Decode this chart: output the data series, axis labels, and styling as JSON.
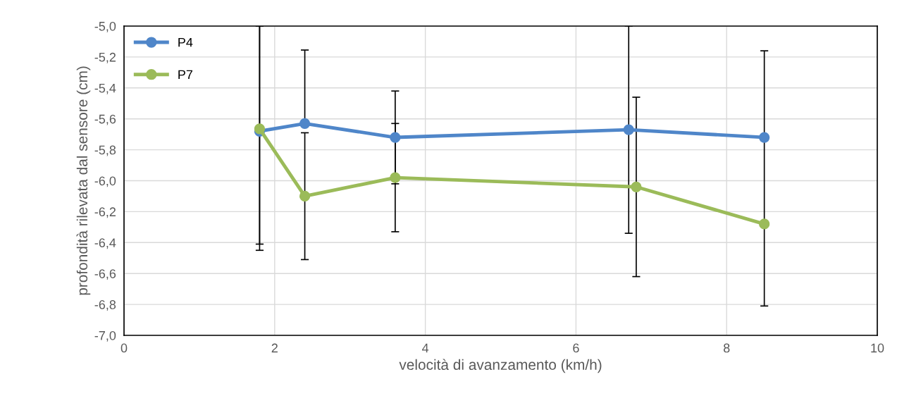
{
  "chart_data": {
    "type": "line",
    "xlabel": "velocità di avanzamento (km/h)",
    "ylabel": "profondità rilevata dal sensore (cm)",
    "xlim": [
      0,
      10
    ],
    "xticks": [
      0,
      2,
      4,
      6,
      8,
      10
    ],
    "ylim": [
      -7,
      -5
    ],
    "yticks": [
      {
        "value": -7,
        "label": "-7,0"
      },
      {
        "value": -6.8,
        "label": "-6,8"
      },
      {
        "value": -6.6,
        "label": "-6,6"
      },
      {
        "value": -6.4,
        "label": "-6,4"
      },
      {
        "value": -6.2,
        "label": "-6,2"
      },
      {
        "value": -6,
        "label": "-6,0"
      },
      {
        "value": -5.8,
        "label": "-5,8"
      },
      {
        "value": -5.6,
        "label": "-5,6"
      },
      {
        "value": -5.4,
        "label": "-5,4"
      },
      {
        "value": -5.2,
        "label": "-5,2"
      },
      {
        "value": -5,
        "label": "-5,0"
      }
    ],
    "grid": true,
    "legend": "top left",
    "marker": "circle",
    "line_style": "solid",
    "series": [
      {
        "name": "P4",
        "color": "#4f86c9",
        "x": [
          1.8,
          2.4,
          3.6,
          6.7,
          8.5
        ],
        "values": [
          -5.68,
          -5.63,
          -5.72,
          -5.67,
          -5.72
        ],
        "errors": [
          [
            -6.41,
            -5.0
          ],
          [
            -5.63,
            -5.155
          ],
          [
            -6.02,
            -5.42
          ],
          [
            -6.34,
            -5.0
          ],
          [
            -5.72,
            -5.16
          ]
        ]
      },
      {
        "name": "P7",
        "color": "#9bbb59",
        "x": [
          1.8,
          2.4,
          3.6,
          6.8,
          8.5
        ],
        "values": [
          -5.665,
          -6.1,
          -5.98,
          -6.04,
          -6.28
        ],
        "errors": [
          [
            -6.45,
            -5.0
          ],
          [
            -6.51,
            -5.69
          ],
          [
            -6.33,
            -5.63
          ],
          [
            -6.62,
            -5.46
          ],
          [
            -6.81,
            -5.74
          ]
        ]
      }
    ]
  }
}
